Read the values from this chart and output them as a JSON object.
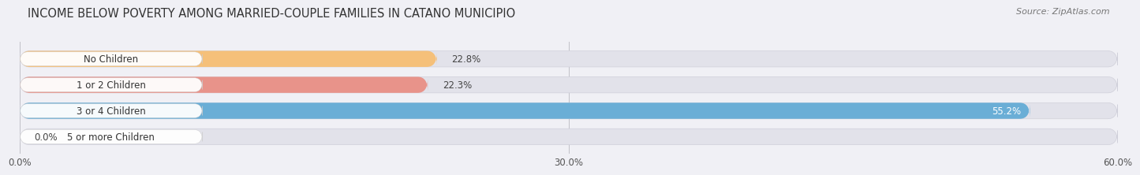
{
  "title": "INCOME BELOW POVERTY AMONG MARRIED-COUPLE FAMILIES IN CATANO MUNICIPIO",
  "source": "Source: ZipAtlas.com",
  "categories": [
    "No Children",
    "1 or 2 Children",
    "3 or 4 Children",
    "5 or more Children"
  ],
  "values": [
    22.8,
    22.3,
    55.2,
    0.0
  ],
  "bar_colors": [
    "#f5c07a",
    "#e8938a",
    "#6aaed6",
    "#c9aed6"
  ],
  "value_labels": [
    "22.8%",
    "22.3%",
    "55.2%",
    "0.0%"
  ],
  "value_inside": [
    false,
    false,
    true,
    false
  ],
  "xlim": [
    0,
    60
  ],
  "xticks": [
    0.0,
    30.0,
    60.0
  ],
  "xtick_labels": [
    "0.0%",
    "30.0%",
    "60.0%"
  ],
  "background_color": "#f0f0f5",
  "bar_bg_color": "#e2e2ea",
  "title_fontsize": 10.5,
  "source_fontsize": 8,
  "label_fontsize": 8.5,
  "value_fontsize": 8.5,
  "tick_fontsize": 8.5,
  "bar_height": 0.62,
  "label_pill_color": "#ffffff",
  "label_pill_alpha": 0.95
}
